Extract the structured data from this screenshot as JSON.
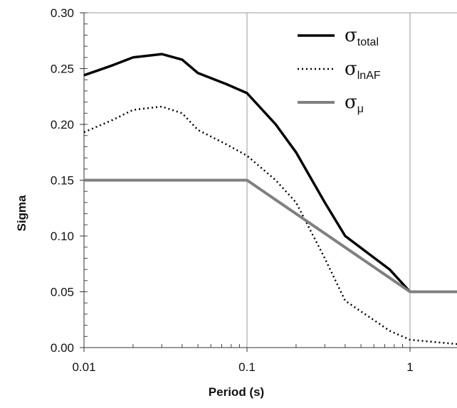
{
  "chart_data": {
    "type": "line",
    "xlabel": "Period (s)",
    "ylabel": "Sigma",
    "xscale": "log",
    "xlim": [
      0.01,
      2
    ],
    "ylim": [
      0,
      0.3
    ],
    "grid": "major gridlines on both axes",
    "legend_position": "top-right",
    "x_ticks": [
      {
        "value": 0.01,
        "label": "0.01"
      },
      {
        "value": 0.1,
        "label": "0.1"
      },
      {
        "value": 1,
        "label": "1"
      }
    ],
    "y_ticks": [
      {
        "value": 0.0,
        "label": "0.00"
      },
      {
        "value": 0.05,
        "label": "0.05"
      },
      {
        "value": 0.1,
        "label": "0.10"
      },
      {
        "value": 0.15,
        "label": "0.15"
      },
      {
        "value": 0.2,
        "label": "0.20"
      },
      {
        "value": 0.25,
        "label": "0.25"
      },
      {
        "value": 0.3,
        "label": "0.30"
      }
    ],
    "series": [
      {
        "name": "σtotal",
        "symbol": "σ",
        "subscript": "total",
        "style": "solid",
        "color": "#000000",
        "points": [
          [
            0.01,
            0.244
          ],
          [
            0.015,
            0.253
          ],
          [
            0.02,
            0.26
          ],
          [
            0.03,
            0.263
          ],
          [
            0.04,
            0.258
          ],
          [
            0.05,
            0.246
          ],
          [
            0.075,
            0.236
          ],
          [
            0.1,
            0.228
          ],
          [
            0.15,
            0.2
          ],
          [
            0.2,
            0.175
          ],
          [
            0.3,
            0.13
          ],
          [
            0.4,
            0.1
          ],
          [
            0.75,
            0.07
          ],
          [
            1.0,
            0.05
          ],
          [
            2.0,
            0.05
          ]
        ]
      },
      {
        "name": "σlnAF",
        "symbol": "σ",
        "subscript": "lnAF",
        "style": "dotted",
        "color": "#000000",
        "points": [
          [
            0.01,
            0.193
          ],
          [
            0.015,
            0.204
          ],
          [
            0.02,
            0.213
          ],
          [
            0.03,
            0.216
          ],
          [
            0.04,
            0.21
          ],
          [
            0.05,
            0.195
          ],
          [
            0.075,
            0.182
          ],
          [
            0.1,
            0.172
          ],
          [
            0.15,
            0.15
          ],
          [
            0.2,
            0.13
          ],
          [
            0.3,
            0.08
          ],
          [
            0.4,
            0.042
          ],
          [
            0.75,
            0.015
          ],
          [
            1.0,
            0.007
          ],
          [
            2.0,
            0.003
          ]
        ]
      },
      {
        "name": "σμ",
        "symbol": "σ",
        "subscript": "μ",
        "style": "solid",
        "color": "#808080",
        "points": [
          [
            0.01,
            0.15
          ],
          [
            0.1,
            0.15
          ],
          [
            1.0,
            0.05
          ],
          [
            2.0,
            0.05
          ]
        ]
      }
    ]
  }
}
